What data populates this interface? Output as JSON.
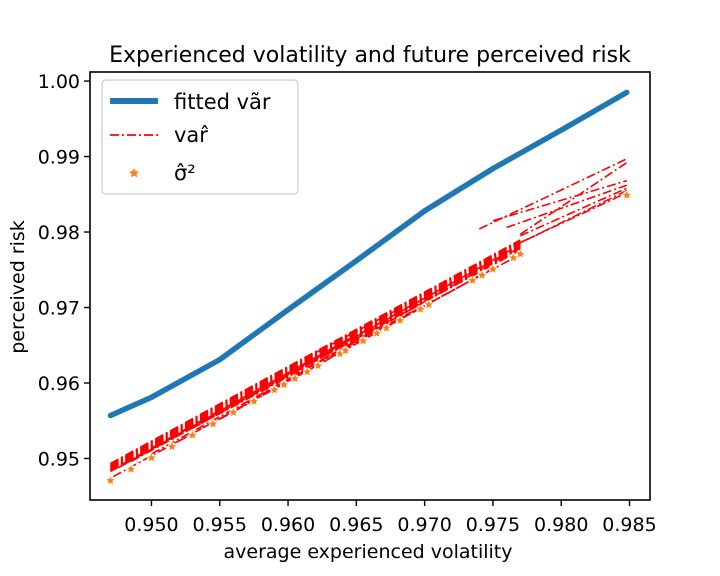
{
  "chart_data": {
    "type": "line",
    "title": "Experienced volatility and future perceived risk",
    "xlabel": "average experienced volatility",
    "ylabel": "perceived risk",
    "xlim": [
      0.9455,
      0.9865
    ],
    "ylim": [
      0.9445,
      1.0012
    ],
    "xticks": [
      "0.950",
      "0.955",
      "0.960",
      "0.965",
      "0.970",
      "0.975",
      "0.980",
      "0.985"
    ],
    "yticks": [
      "0.95",
      "0.96",
      "0.97",
      "0.98",
      "0.99",
      "1.00"
    ],
    "grid": false,
    "legend_position": "top-left",
    "colors": {
      "fitted": "#1f77b4",
      "sample_var": "#ff0000",
      "sigma_points": "#ff7f0e"
    },
    "series": [
      {
        "name": "fitted vãr",
        "style": "solid",
        "x": [
          0.947,
          0.95,
          0.955,
          0.96,
          0.965,
          0.97,
          0.975,
          0.98,
          0.9848
        ],
        "y": [
          0.9557,
          0.9581,
          0.9631,
          0.9697,
          0.9762,
          0.9828,
          0.9884,
          0.9935,
          0.9985
        ]
      },
      {
        "name": "var̂",
        "style": "dashdot",
        "bundle": {
          "lines": [
            {
              "x": [
                0.947,
                0.977
              ],
              "y": [
                0.9483,
                0.977
              ]
            },
            {
              "x": [
                0.9478,
                0.976
              ],
              "y": [
                0.9492,
                0.9772
              ]
            },
            {
              "x": [
                0.9485,
                0.97
              ],
              "y": [
                0.9496,
                0.9708
              ]
            },
            {
              "x": [
                0.95,
                0.969
              ],
              "y": [
                0.9506,
                0.9694
              ]
            },
            {
              "x": [
                0.952,
                0.974
              ],
              "y": [
                0.9523,
                0.9742
              ]
            },
            {
              "x": [
                0.953,
                0.9765
              ],
              "y": [
                0.954,
                0.9778
              ]
            },
            {
              "x": [
                0.955,
                0.975
              ],
              "y": [
                0.9552,
                0.9752
              ]
            },
            {
              "x": [
                0.957,
                0.972
              ],
              "y": [
                0.9574,
                0.9728
              ]
            },
            {
              "x": [
                0.96,
                0.977
              ],
              "y": [
                0.9605,
                0.978
              ]
            },
            {
              "x": [
                0.962,
                0.968
              ],
              "y": [
                0.964,
                0.9697
              ]
            },
            {
              "x": [
                0.9472,
                0.96
              ],
              "y": [
                0.9476,
                0.9602
              ]
            },
            {
              "x": [
                0.9476,
                0.965
              ],
              "y": [
                0.9488,
                0.9664
              ]
            },
            {
              "x": [
                0.974,
                0.9848
              ],
              "y": [
                0.9804,
                0.9897
              ]
            },
            {
              "x": [
                0.975,
                0.9848
              ],
              "y": [
                0.9815,
                0.9868
              ]
            },
            {
              "x": [
                0.976,
                0.9848
              ],
              "y": [
                0.9806,
                0.9862
              ]
            },
            {
              "x": [
                0.977,
                0.9848
              ],
              "y": [
                0.9795,
                0.9858
              ]
            },
            {
              "x": [
                0.977,
                0.9848
              ],
              "y": [
                0.9786,
                0.9852
              ]
            },
            {
              "x": [
                0.9775,
                0.9848
              ],
              "y": [
                0.979,
                0.9855
              ]
            },
            {
              "x": [
                0.977,
                0.9848
              ],
              "y": [
                0.9797,
                0.9892
              ]
            }
          ]
        }
      },
      {
        "name": "σ̂²",
        "style": "marker",
        "x": [
          0.947,
          0.9485,
          0.95,
          0.9515,
          0.953,
          0.9545,
          0.956,
          0.9575,
          0.959,
          0.9597,
          0.9605,
          0.9614,
          0.9622,
          0.9638,
          0.9642,
          0.9655,
          0.9665,
          0.9672,
          0.9682,
          0.9697,
          0.9703,
          0.9735,
          0.9742,
          0.975,
          0.9765,
          0.977,
          0.9848
        ],
        "y": [
          0.9471,
          0.9486,
          0.9501,
          0.9516,
          0.9531,
          0.9546,
          0.9561,
          0.9576,
          0.9591,
          0.9598,
          0.9606,
          0.9615,
          0.9623,
          0.9639,
          0.9643,
          0.9656,
          0.9666,
          0.9673,
          0.9683,
          0.9698,
          0.9704,
          0.9736,
          0.9743,
          0.9751,
          0.9766,
          0.9771,
          0.9849
        ]
      }
    ]
  }
}
